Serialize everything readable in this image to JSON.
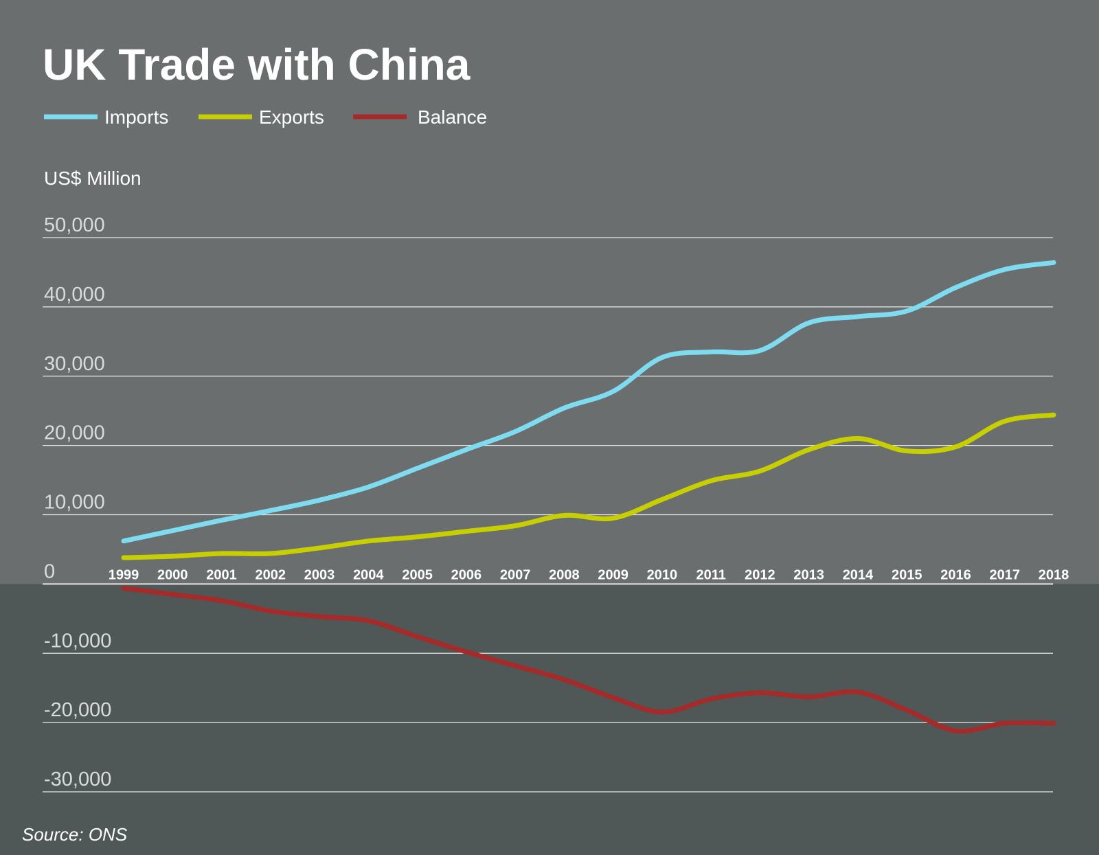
{
  "chart_data": {
    "type": "line",
    "title": "UK Trade with China",
    "ylabel": "US$ Million",
    "source": "Source: ONS",
    "ylim": [
      -30000,
      50000
    ],
    "yticks": [
      50000,
      40000,
      30000,
      20000,
      10000,
      0,
      -10000,
      -20000,
      -30000
    ],
    "ytick_labels": [
      "50,000",
      "40,000",
      "30,000",
      "20,000",
      "10,000",
      "0",
      "-10,000",
      "-20,000",
      "-30,000"
    ],
    "grid": true,
    "legend_position": "top-left",
    "x": [
      "1999",
      "2000",
      "2001",
      "2002",
      "2003",
      "2004",
      "2005",
      "2006",
      "2007",
      "2008",
      "2009",
      "2010",
      "2011",
      "2012",
      "2013",
      "2014",
      "2015",
      "2016",
      "2017",
      "2018"
    ],
    "series": [
      {
        "name": "Imports",
        "color": "#7fdcf0",
        "values": [
          6200,
          7700,
          9200,
          10600,
          12100,
          14000,
          16700,
          19400,
          22000,
          25400,
          27800,
          32700,
          33500,
          33700,
          37700,
          38600,
          39400,
          42800,
          45400,
          46400
        ]
      },
      {
        "name": "Exports",
        "color": "#c8cf00",
        "values": [
          3800,
          4000,
          4400,
          4400,
          5200,
          6200,
          6800,
          7600,
          8400,
          9900,
          9500,
          12200,
          14900,
          16300,
          19400,
          21000,
          19200,
          19800,
          23500,
          24400
        ]
      },
      {
        "name": "Balance",
        "color": "#a52a2a",
        "values": [
          -600,
          -1500,
          -2400,
          -3900,
          -4700,
          -5300,
          -7600,
          -9800,
          -11800,
          -13800,
          -16400,
          -18500,
          -16600,
          -15700,
          -16300,
          -15600,
          -18200,
          -21200,
          -20100,
          -20100
        ]
      }
    ],
    "colors": {
      "background_upper": "#6a6e6f",
      "background_lower": "#4f5757"
    }
  }
}
